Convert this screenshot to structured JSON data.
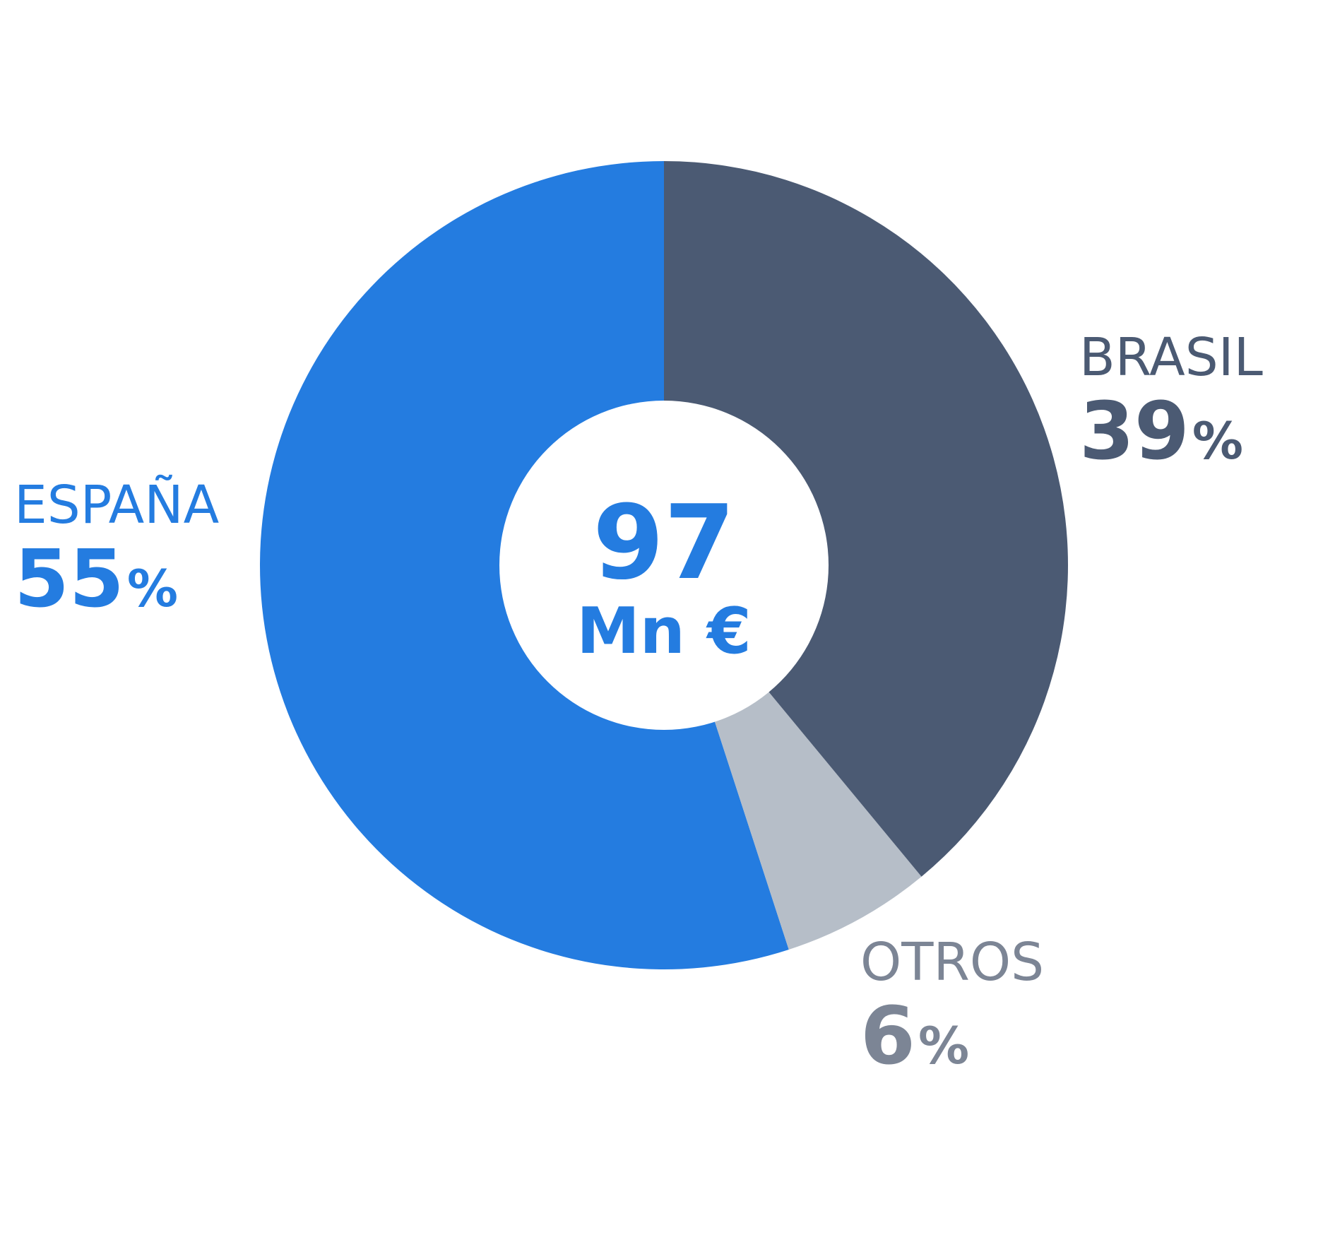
{
  "chart_data": {
    "type": "pie",
    "style": "donut",
    "center_value": "97",
    "center_unit": "Mn €",
    "slices": [
      {
        "name": "ESPAÑA",
        "value": 55,
        "label": "55",
        "color": "#247CE0"
      },
      {
        "name": "OTROS",
        "value": 6,
        "label": "6",
        "color": "#B6BEC8"
      },
      {
        "name": "BRASIL",
        "value": 39,
        "label": "39",
        "color": "#4B5A73"
      }
    ],
    "label_colors": {
      "ESPAÑA": "#247CE0",
      "OTROS": "#7C8595",
      "BRASIL": "#4B5A73"
    },
    "percent_symbol": "%",
    "center_color": "#247CE0"
  }
}
